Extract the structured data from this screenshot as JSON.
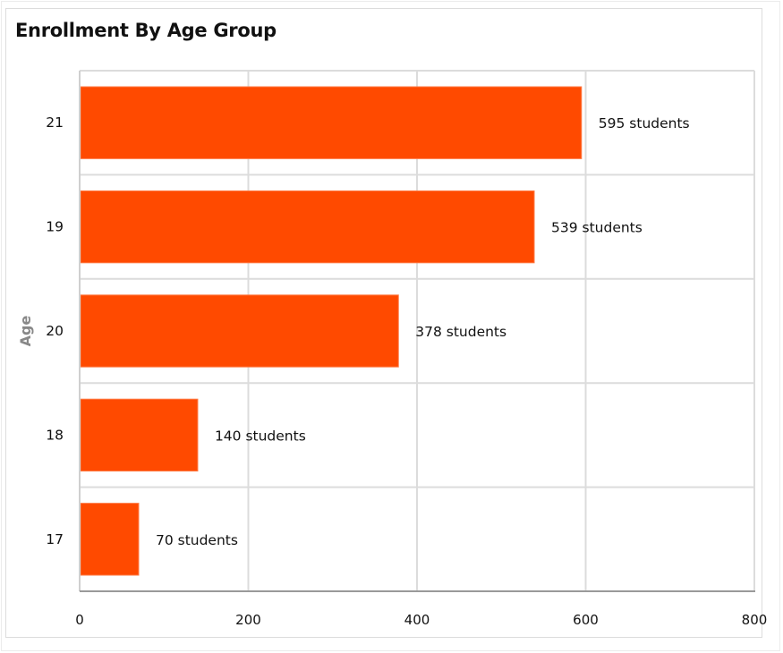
{
  "chart_data": {
    "type": "bar",
    "orientation": "horizontal",
    "title": "Enrollment By Age Group",
    "ylabel": "Age",
    "xlabel": "",
    "categories": [
      "21",
      "19",
      "20",
      "18",
      "17"
    ],
    "values": [
      595,
      539,
      378,
      140,
      70
    ],
    "data_labels": [
      "595 students",
      "539 students",
      "378 students",
      "140 students",
      "70 students"
    ],
    "xlim": [
      0,
      800
    ],
    "xticks": [
      "0",
      "200",
      "400",
      "600",
      "800"
    ],
    "grid": true,
    "legend": "none",
    "bar_color": "#FF4A00"
  }
}
